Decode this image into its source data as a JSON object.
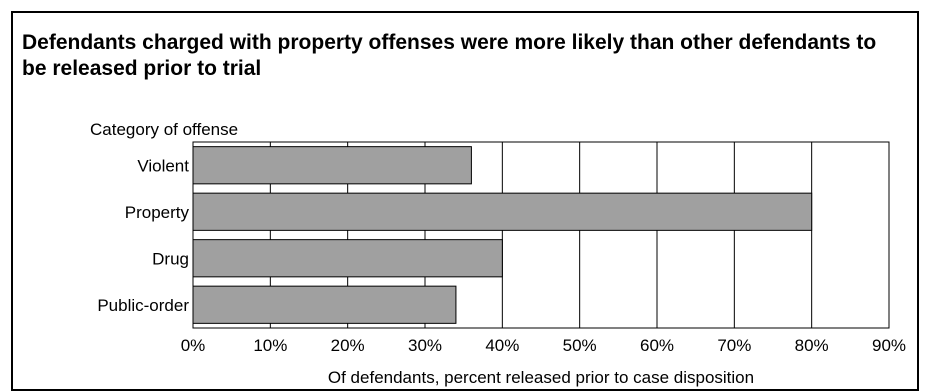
{
  "chart_data": {
    "type": "bar",
    "orientation": "horizontal",
    "title": "Defendants charged with property offenses were more likely than other defendants to be released prior to trial",
    "category_axis_title": "Category of offense",
    "xlabel": "Of defendants, percent released prior to case disposition",
    "categories": [
      "Violent",
      "Property",
      "Drug",
      "Public-order"
    ],
    "values": [
      36,
      80,
      40,
      34
    ],
    "unit": "%",
    "xlim": [
      0,
      90
    ],
    "ticks": [
      0,
      10,
      20,
      30,
      40,
      50,
      60,
      70,
      80,
      90
    ],
    "tick_labels": [
      "0%",
      "10%",
      "20%",
      "30%",
      "40%",
      "50%",
      "60%",
      "70%",
      "80%",
      "90%"
    ],
    "grid": true,
    "colors": {
      "bar_fill": "#a0a0a0",
      "bar_stroke": "#000000",
      "grid": "#000000"
    }
  }
}
